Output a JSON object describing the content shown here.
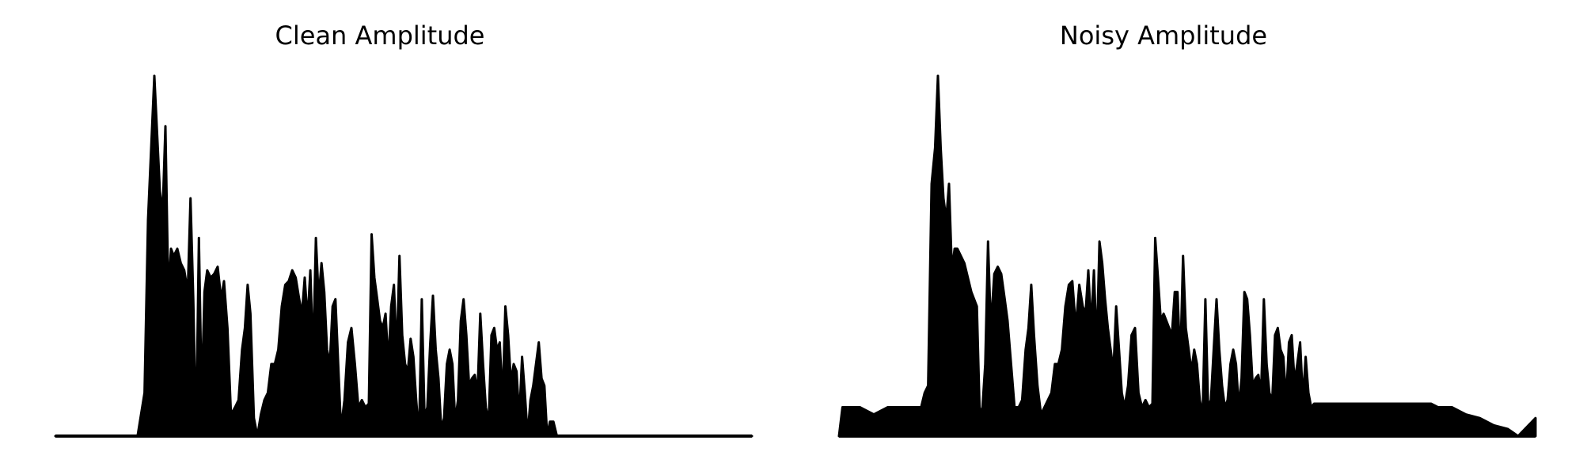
{
  "chart_data": [
    {
      "type": "area",
      "title": "Clean Amplitude",
      "xlabel": "",
      "ylabel": "",
      "grid": false,
      "axes_visible": false,
      "fill_color": "#000000",
      "xlim": [
        0,
        100
      ],
      "ylim": [
        0,
        1
      ],
      "envelope": [
        [
          0,
          0
        ],
        [
          11.8,
          0
        ],
        [
          12.3,
          0.06
        ],
        [
          12.8,
          0.12
        ],
        [
          13.3,
          0.6
        ],
        [
          13.8,
          0.82
        ],
        [
          14.2,
          1.0
        ],
        [
          14.6,
          0.84
        ],
        [
          15.0,
          0.68
        ],
        [
          15.4,
          0.62
        ],
        [
          15.8,
          0.86
        ],
        [
          16.2,
          0.4
        ],
        [
          16.6,
          0.52
        ],
        [
          17.0,
          0.5
        ],
        [
          17.5,
          0.52
        ],
        [
          18.0,
          0.48
        ],
        [
          18.5,
          0.46
        ],
        [
          19.0,
          0.4
        ],
        [
          19.4,
          0.66
        ],
        [
          19.8,
          0.38
        ],
        [
          20.2,
          0.0
        ],
        [
          20.6,
          0.55
        ],
        [
          21.0,
          0.1
        ],
        [
          21.4,
          0.4
        ],
        [
          21.8,
          0.46
        ],
        [
          22.3,
          0.44
        ],
        [
          22.8,
          0.45
        ],
        [
          23.3,
          0.47
        ],
        [
          23.8,
          0.38
        ],
        [
          24.2,
          0.43
        ],
        [
          24.7,
          0.3
        ],
        [
          25.2,
          0.06
        ],
        [
          25.8,
          0.08
        ],
        [
          26.3,
          0.1
        ],
        [
          26.8,
          0.24
        ],
        [
          27.2,
          0.3
        ],
        [
          27.6,
          0.42
        ],
        [
          28.0,
          0.34
        ],
        [
          28.5,
          0.05
        ],
        [
          29.0,
          0.0
        ],
        [
          29.5,
          0.06
        ],
        [
          30.0,
          0.1
        ],
        [
          30.5,
          0.12
        ],
        [
          31.0,
          0.2
        ],
        [
          31.5,
          0.2
        ],
        [
          32.0,
          0.24
        ],
        [
          32.5,
          0.36
        ],
        [
          33.0,
          0.42
        ],
        [
          33.5,
          0.43
        ],
        [
          34.0,
          0.46
        ],
        [
          34.5,
          0.44
        ],
        [
          35.0,
          0.38
        ],
        [
          35.4,
          0.34
        ],
        [
          35.8,
          0.44
        ],
        [
          36.2,
          0.32
        ],
        [
          36.6,
          0.46
        ],
        [
          37.0,
          0.22
        ],
        [
          37.4,
          0.55
        ],
        [
          37.8,
          0.38
        ],
        [
          38.2,
          0.48
        ],
        [
          38.6,
          0.4
        ],
        [
          39.0,
          0.24
        ],
        [
          39.4,
          0.2
        ],
        [
          39.8,
          0.36
        ],
        [
          40.2,
          0.38
        ],
        [
          40.6,
          0.2
        ],
        [
          41.0,
          0.02
        ],
        [
          41.5,
          0.1
        ],
        [
          42.0,
          0.26
        ],
        [
          42.5,
          0.3
        ],
        [
          43.0,
          0.2
        ],
        [
          43.5,
          0.08
        ],
        [
          44.0,
          0.1
        ],
        [
          44.5,
          0.08
        ],
        [
          45.0,
          0.09
        ],
        [
          45.4,
          0.56
        ],
        [
          45.8,
          0.44
        ],
        [
          46.2,
          0.38
        ],
        [
          46.6,
          0.32
        ],
        [
          47.0,
          0.3
        ],
        [
          47.4,
          0.34
        ],
        [
          47.8,
          0.2
        ],
        [
          48.2,
          0.36
        ],
        [
          48.6,
          0.42
        ],
        [
          49.0,
          0.22
        ],
        [
          49.4,
          0.5
        ],
        [
          49.8,
          0.28
        ],
        [
          50.2,
          0.2
        ],
        [
          50.6,
          0.18
        ],
        [
          51.0,
          0.27
        ],
        [
          51.4,
          0.22
        ],
        [
          51.8,
          0.1
        ],
        [
          52.2,
          0.0
        ],
        [
          52.6,
          0.38
        ],
        [
          53.0,
          0.05
        ],
        [
          53.4,
          0.08
        ],
        [
          53.8,
          0.25
        ],
        [
          54.2,
          0.39
        ],
        [
          54.6,
          0.24
        ],
        [
          55.0,
          0.16
        ],
        [
          55.4,
          0.02
        ],
        [
          55.8,
          0.05
        ],
        [
          56.2,
          0.2
        ],
        [
          56.6,
          0.24
        ],
        [
          57.0,
          0.2
        ],
        [
          57.4,
          0.04
        ],
        [
          57.8,
          0.1
        ],
        [
          58.2,
          0.32
        ],
        [
          58.6,
          0.38
        ],
        [
          59.0,
          0.28
        ],
        [
          59.4,
          0.14
        ],
        [
          59.8,
          0.16
        ],
        [
          60.2,
          0.17
        ],
        [
          60.6,
          0.12
        ],
        [
          61.0,
          0.34
        ],
        [
          61.4,
          0.2
        ],
        [
          61.8,
          0.08
        ],
        [
          62.2,
          0.04
        ],
        [
          62.6,
          0.28
        ],
        [
          63.0,
          0.3
        ],
        [
          63.4,
          0.24
        ],
        [
          63.8,
          0.26
        ],
        [
          64.2,
          0.1
        ],
        [
          64.6,
          0.36
        ],
        [
          65.0,
          0.28
        ],
        [
          65.4,
          0.15
        ],
        [
          65.8,
          0.2
        ],
        [
          66.2,
          0.18
        ],
        [
          66.6,
          0.05
        ],
        [
          67.0,
          0.22
        ],
        [
          67.4,
          0.12
        ],
        [
          67.8,
          0.0
        ],
        [
          68.2,
          0.1
        ],
        [
          68.6,
          0.14
        ],
        [
          69.0,
          0.2
        ],
        [
          69.4,
          0.26
        ],
        [
          69.8,
          0.16
        ],
        [
          70.2,
          0.14
        ],
        [
          70.6,
          0.0
        ],
        [
          71.0,
          0.04
        ],
        [
          71.5,
          0.04
        ],
        [
          72.0,
          0.0
        ],
        [
          100,
          0
        ]
      ]
    },
    {
      "type": "area",
      "title": "Noisy Amplitude",
      "xlabel": "",
      "ylabel": "",
      "grid": false,
      "axes_visible": false,
      "fill_color": "#000000",
      "xlim": [
        0,
        100
      ],
      "ylim": [
        0,
        1
      ],
      "envelope": [
        [
          0,
          0
        ],
        [
          0.5,
          0.08
        ],
        [
          2.0,
          0.08
        ],
        [
          3.0,
          0.08
        ],
        [
          5.0,
          0.06
        ],
        [
          7.0,
          0.08
        ],
        [
          9.0,
          0.08
        ],
        [
          11.8,
          0.08
        ],
        [
          12.3,
          0.12
        ],
        [
          12.8,
          0.14
        ],
        [
          13.3,
          0.7
        ],
        [
          13.8,
          0.8
        ],
        [
          14.2,
          1.0
        ],
        [
          14.6,
          0.8
        ],
        [
          15.0,
          0.66
        ],
        [
          15.4,
          0.6
        ],
        [
          15.8,
          0.7
        ],
        [
          16.2,
          0.46
        ],
        [
          16.6,
          0.52
        ],
        [
          17.0,
          0.52
        ],
        [
          17.5,
          0.5
        ],
        [
          18.0,
          0.48
        ],
        [
          18.5,
          0.44
        ],
        [
          19.0,
          0.4
        ],
        [
          19.4,
          0.38
        ],
        [
          19.8,
          0.36
        ],
        [
          20.2,
          0.06
        ],
        [
          20.6,
          0.08
        ],
        [
          21.0,
          0.2
        ],
        [
          21.4,
          0.54
        ],
        [
          21.8,
          0.3
        ],
        [
          22.3,
          0.45
        ],
        [
          22.8,
          0.47
        ],
        [
          23.3,
          0.45
        ],
        [
          23.8,
          0.38
        ],
        [
          24.2,
          0.32
        ],
        [
          24.7,
          0.2
        ],
        [
          25.2,
          0.08
        ],
        [
          25.8,
          0.08
        ],
        [
          26.3,
          0.1
        ],
        [
          26.8,
          0.24
        ],
        [
          27.2,
          0.3
        ],
        [
          27.6,
          0.42
        ],
        [
          28.0,
          0.28
        ],
        [
          28.5,
          0.14
        ],
        [
          29.0,
          0.06
        ],
        [
          29.5,
          0.08
        ],
        [
          30.0,
          0.1
        ],
        [
          30.5,
          0.12
        ],
        [
          31.0,
          0.2
        ],
        [
          31.5,
          0.2
        ],
        [
          32.0,
          0.24
        ],
        [
          32.5,
          0.36
        ],
        [
          33.0,
          0.42
        ],
        [
          33.5,
          0.43
        ],
        [
          34.0,
          0.3
        ],
        [
          34.5,
          0.42
        ],
        [
          35.0,
          0.36
        ],
        [
          35.4,
          0.34
        ],
        [
          35.8,
          0.46
        ],
        [
          36.2,
          0.3
        ],
        [
          36.6,
          0.46
        ],
        [
          37.0,
          0.24
        ],
        [
          37.4,
          0.54
        ],
        [
          37.8,
          0.48
        ],
        [
          38.2,
          0.38
        ],
        [
          38.6,
          0.3
        ],
        [
          39.0,
          0.24
        ],
        [
          39.4,
          0.18
        ],
        [
          39.8,
          0.36
        ],
        [
          40.2,
          0.24
        ],
        [
          40.6,
          0.12
        ],
        [
          41.0,
          0.08
        ],
        [
          41.5,
          0.14
        ],
        [
          42.0,
          0.28
        ],
        [
          42.5,
          0.3
        ],
        [
          43.0,
          0.12
        ],
        [
          43.5,
          0.08
        ],
        [
          44.0,
          0.1
        ],
        [
          44.5,
          0.08
        ],
        [
          45.0,
          0.09
        ],
        [
          45.4,
          0.55
        ],
        [
          45.8,
          0.44
        ],
        [
          46.2,
          0.32
        ],
        [
          46.6,
          0.34
        ],
        [
          47.0,
          0.32
        ],
        [
          47.4,
          0.3
        ],
        [
          47.8,
          0.28
        ],
        [
          48.2,
          0.4
        ],
        [
          48.6,
          0.4
        ],
        [
          49.0,
          0.2
        ],
        [
          49.4,
          0.5
        ],
        [
          49.8,
          0.3
        ],
        [
          50.2,
          0.24
        ],
        [
          50.6,
          0.18
        ],
        [
          51.0,
          0.24
        ],
        [
          51.4,
          0.2
        ],
        [
          51.8,
          0.1
        ],
        [
          52.2,
          0.06
        ],
        [
          52.6,
          0.38
        ],
        [
          53.0,
          0.08
        ],
        [
          53.4,
          0.1
        ],
        [
          53.8,
          0.24
        ],
        [
          54.2,
          0.38
        ],
        [
          54.6,
          0.24
        ],
        [
          55.0,
          0.14
        ],
        [
          55.4,
          0.08
        ],
        [
          55.8,
          0.1
        ],
        [
          56.2,
          0.2
        ],
        [
          56.6,
          0.24
        ],
        [
          57.0,
          0.2
        ],
        [
          57.4,
          0.08
        ],
        [
          57.8,
          0.16
        ],
        [
          58.2,
          0.4
        ],
        [
          58.6,
          0.38
        ],
        [
          59.0,
          0.28
        ],
        [
          59.4,
          0.14
        ],
        [
          59.8,
          0.16
        ],
        [
          60.2,
          0.17
        ],
        [
          60.6,
          0.12
        ],
        [
          61.0,
          0.38
        ],
        [
          61.4,
          0.2
        ],
        [
          61.8,
          0.12
        ],
        [
          62.2,
          0.1
        ],
        [
          62.6,
          0.28
        ],
        [
          63.0,
          0.3
        ],
        [
          63.4,
          0.24
        ],
        [
          63.8,
          0.22
        ],
        [
          64.2,
          0.1
        ],
        [
          64.6,
          0.26
        ],
        [
          65.0,
          0.28
        ],
        [
          65.4,
          0.15
        ],
        [
          65.8,
          0.2
        ],
        [
          66.2,
          0.26
        ],
        [
          66.6,
          0.1
        ],
        [
          67.0,
          0.22
        ],
        [
          67.4,
          0.12
        ],
        [
          67.8,
          0.08
        ],
        [
          68.2,
          0.09
        ],
        [
          69.0,
          0.09
        ],
        [
          70.0,
          0.09
        ],
        [
          72.0,
          0.09
        ],
        [
          74.0,
          0.09
        ],
        [
          76.0,
          0.09
        ],
        [
          78.0,
          0.09
        ],
        [
          80.0,
          0.09
        ],
        [
          82.0,
          0.09
        ],
        [
          84.0,
          0.09
        ],
        [
          85.0,
          0.09
        ],
        [
          86.0,
          0.08
        ],
        [
          88.0,
          0.08
        ],
        [
          90.0,
          0.06
        ],
        [
          92.0,
          0.05
        ],
        [
          94.0,
          0.03
        ],
        [
          96.0,
          0.02
        ],
        [
          97.5,
          0.0
        ],
        [
          98.5,
          0.02
        ],
        [
          99.5,
          0.04
        ],
        [
          100,
          0.05
        ]
      ]
    }
  ]
}
